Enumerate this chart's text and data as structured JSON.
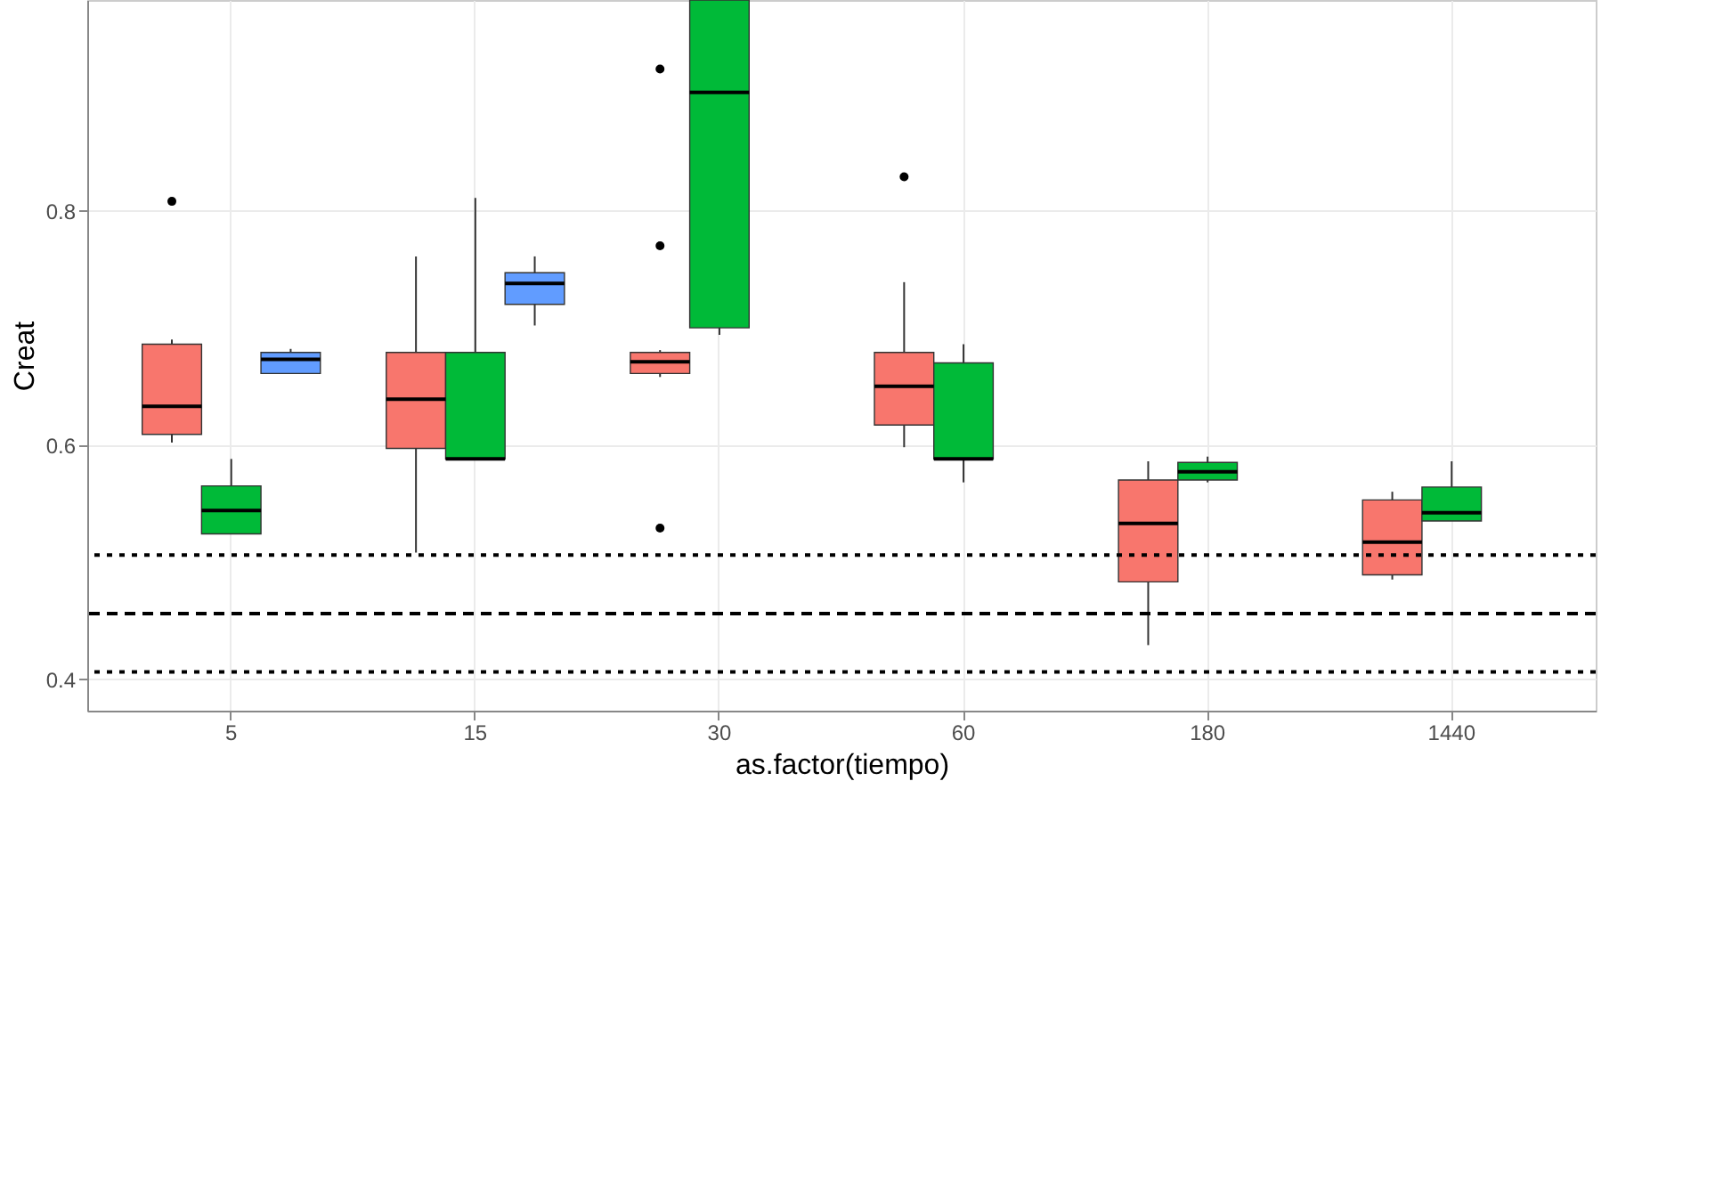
{
  "chart_data": {
    "type": "box",
    "ylabel": "Creat",
    "xlabel": "as.factor(tiempo)",
    "categories": [
      "5",
      "15",
      "30",
      "60",
      "180",
      "1440"
    ],
    "ylim": [
      0.373,
      0.98
    ],
    "yticks": [
      0.4,
      0.6,
      0.8
    ],
    "grid": true,
    "series": [
      {
        "color": "#f8766d",
        "boxes": [
          {
            "low": 0.602,
            "q1": 0.609,
            "median": 0.633,
            "q3": 0.686,
            "high": 0.69,
            "outliers": [
              0.808
            ]
          },
          {
            "low": 0.508,
            "q1": 0.597,
            "median": 0.639,
            "q3": 0.679,
            "high": 0.761
          },
          {
            "low": 0.658,
            "q1": 0.661,
            "median": 0.671,
            "q3": 0.679,
            "high": 0.681,
            "outliers": [
              0.921,
              0.77,
              0.529
            ]
          },
          {
            "low": 0.598,
            "q1": 0.617,
            "median": 0.65,
            "q3": 0.679,
            "high": 0.739,
            "outliers": [
              0.829
            ]
          },
          {
            "low": 0.429,
            "q1": 0.483,
            "median": 0.533,
            "q3": 0.57,
            "high": 0.586
          },
          {
            "low": 0.485,
            "q1": 0.489,
            "median": 0.517,
            "q3": 0.553,
            "high": 0.56
          }
        ]
      },
      {
        "color": "#00ba38",
        "boxes": [
          {
            "low": 0.524,
            "q1": 0.524,
            "median": 0.544,
            "q3": 0.565,
            "high": 0.588
          },
          {
            "low": 0.588,
            "q1": 0.588,
            "median": 0.588,
            "q3": 0.679,
            "high": 0.811
          },
          {
            "low": 0.694,
            "q1": 0.7,
            "median": 0.901,
            "q3": 0.98,
            "high": 0.98
          },
          {
            "low": 0.568,
            "q1": 0.588,
            "median": 0.588,
            "q3": 0.67,
            "high": 0.686
          },
          {
            "low": 0.568,
            "q1": 0.57,
            "median": 0.577,
            "q3": 0.585,
            "high": 0.59
          },
          {
            "low": 0.535,
            "q1": 0.535,
            "median": 0.542,
            "q3": 0.564,
            "high": 0.586
          }
        ]
      },
      {
        "color": "#619cff",
        "boxes": [
          {
            "low": 0.661,
            "q1": 0.661,
            "median": 0.673,
            "q3": 0.679,
            "high": 0.682
          },
          {
            "low": 0.702,
            "q1": 0.72,
            "median": 0.738,
            "q3": 0.747,
            "high": 0.761
          },
          null,
          null,
          null,
          null
        ]
      }
    ],
    "ref_lines": [
      {
        "axis": "y",
        "value": 0.506,
        "line_style": "dotted"
      },
      {
        "axis": "y",
        "value": 0.456,
        "line_style": "dashed"
      },
      {
        "axis": "y",
        "value": 0.406,
        "line_style": "dotted"
      }
    ]
  }
}
